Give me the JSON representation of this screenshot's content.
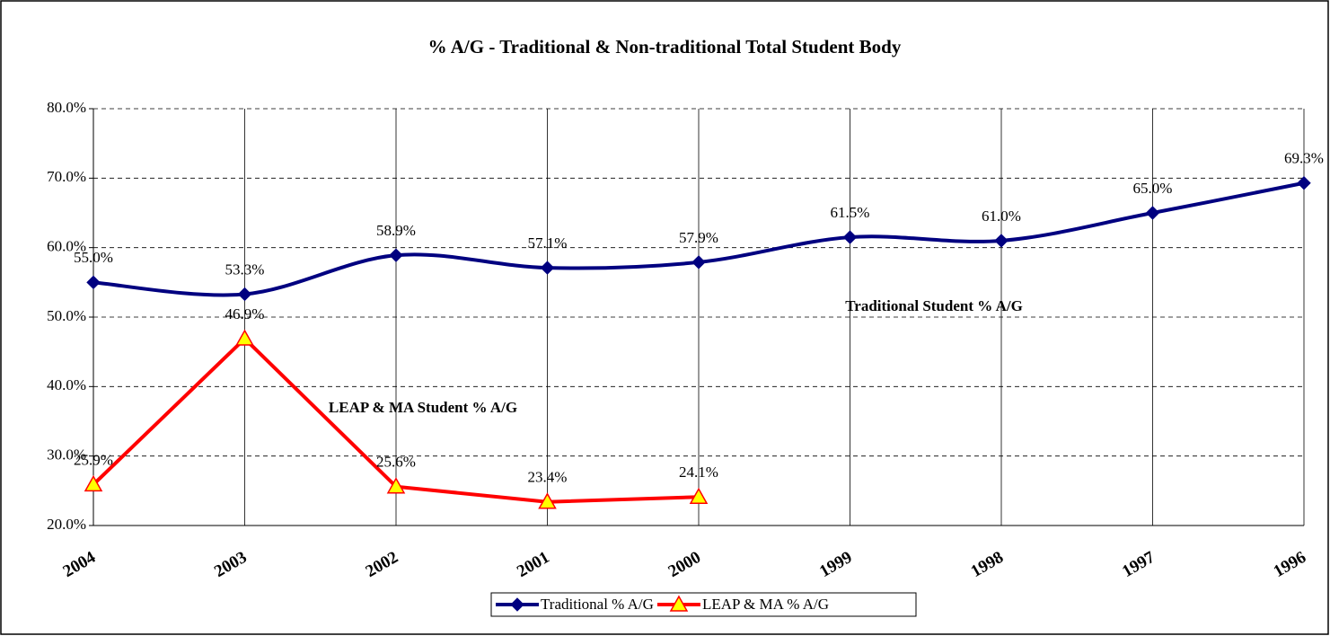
{
  "chart_data": {
    "type": "line",
    "title": "% A/G - Traditional & Non-traditional Total Student Body",
    "categories": [
      "2004",
      "2003",
      "2002",
      "2001",
      "2000",
      "1999",
      "1998",
      "1997",
      "1996"
    ],
    "series": [
      {
        "name": "Traditional % A/G",
        "color": "#000080",
        "marker": "diamond",
        "smooth": true,
        "values": [
          55.0,
          53.3,
          58.9,
          57.1,
          57.9,
          61.5,
          61.0,
          65.0,
          69.3
        ],
        "value_labels": [
          "55.0%",
          "53.3%",
          "58.9%",
          "57.1%",
          "57.9%",
          "61.5%",
          "61.0%",
          "65.0%",
          "69.3%"
        ]
      },
      {
        "name": "LEAP & MA % A/G",
        "color": "#ff0000",
        "marker": "triangle",
        "smooth": false,
        "values": [
          25.9,
          46.9,
          25.6,
          23.4,
          24.1,
          null,
          null,
          null,
          null
        ],
        "value_labels": [
          "25.9%",
          "46.9%",
          "25.6%",
          "23.4%",
          "24.1%",
          null,
          null,
          null,
          null
        ]
      }
    ],
    "ylim": [
      20,
      80
    ],
    "yticks": [
      {
        "value": 20,
        "label": "20.0%"
      },
      {
        "value": 30,
        "label": "30.0%"
      },
      {
        "value": 40,
        "label": "40.0%"
      },
      {
        "value": 50,
        "label": "50.0%"
      },
      {
        "value": 60,
        "label": "60.0%"
      },
      {
        "value": 70,
        "label": "70.0%"
      },
      {
        "value": 80,
        "label": "80.0%"
      }
    ],
    "grid": true,
    "legend": "bottom",
    "annotations": [
      "Traditional Student % A/G",
      "LEAP & MA Student % A/G"
    ]
  }
}
